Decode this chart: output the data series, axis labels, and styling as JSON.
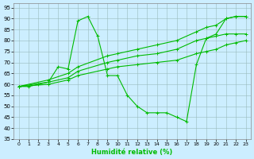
{
  "xlabel": "Humidité relative (%)",
  "bg_color": "#cceeff",
  "grid_color": "#99bbbb",
  "line_color": "#00bb00",
  "xlim": [
    -0.5,
    23.5
  ],
  "ylim": [
    35,
    97
  ],
  "yticks": [
    35,
    40,
    45,
    50,
    55,
    60,
    65,
    70,
    75,
    80,
    85,
    90,
    95
  ],
  "xticks": [
    0,
    1,
    2,
    3,
    4,
    5,
    6,
    7,
    8,
    9,
    10,
    11,
    12,
    13,
    14,
    15,
    16,
    17,
    18,
    19,
    20,
    21,
    22,
    23
  ],
  "line1_x": [
    0,
    1,
    2,
    3,
    4,
    5,
    6,
    7,
    8,
    9,
    10,
    11,
    12,
    13,
    14,
    15,
    16,
    17,
    18,
    19,
    20,
    21,
    22,
    23
  ],
  "line1_y": [
    59,
    59,
    60,
    61,
    68,
    67,
    89,
    91,
    82,
    64,
    64,
    55,
    50,
    47,
    47,
    47,
    45,
    43,
    69,
    81,
    83,
    90,
    91,
    91
  ],
  "line2_x": [
    0,
    3,
    5,
    6,
    9,
    10,
    12,
    14,
    16,
    18,
    19,
    20,
    21,
    22,
    23
  ],
  "line2_y": [
    59,
    62,
    65,
    68,
    73,
    74,
    76,
    78,
    80,
    84,
    86,
    87,
    90,
    91,
    91
  ],
  "line3_x": [
    0,
    3,
    5,
    6,
    9,
    10,
    12,
    14,
    16,
    18,
    19,
    20,
    21,
    22,
    23
  ],
  "line3_y": [
    59,
    61,
    63,
    66,
    70,
    71,
    73,
    74,
    76,
    80,
    81,
    82,
    83,
    83,
    83
  ],
  "line4_x": [
    0,
    3,
    5,
    6,
    9,
    10,
    12,
    14,
    16,
    18,
    19,
    20,
    21,
    22,
    23
  ],
  "line4_y": [
    59,
    60,
    62,
    64,
    67,
    68,
    69,
    70,
    71,
    74,
    75,
    76,
    78,
    79,
    80
  ]
}
